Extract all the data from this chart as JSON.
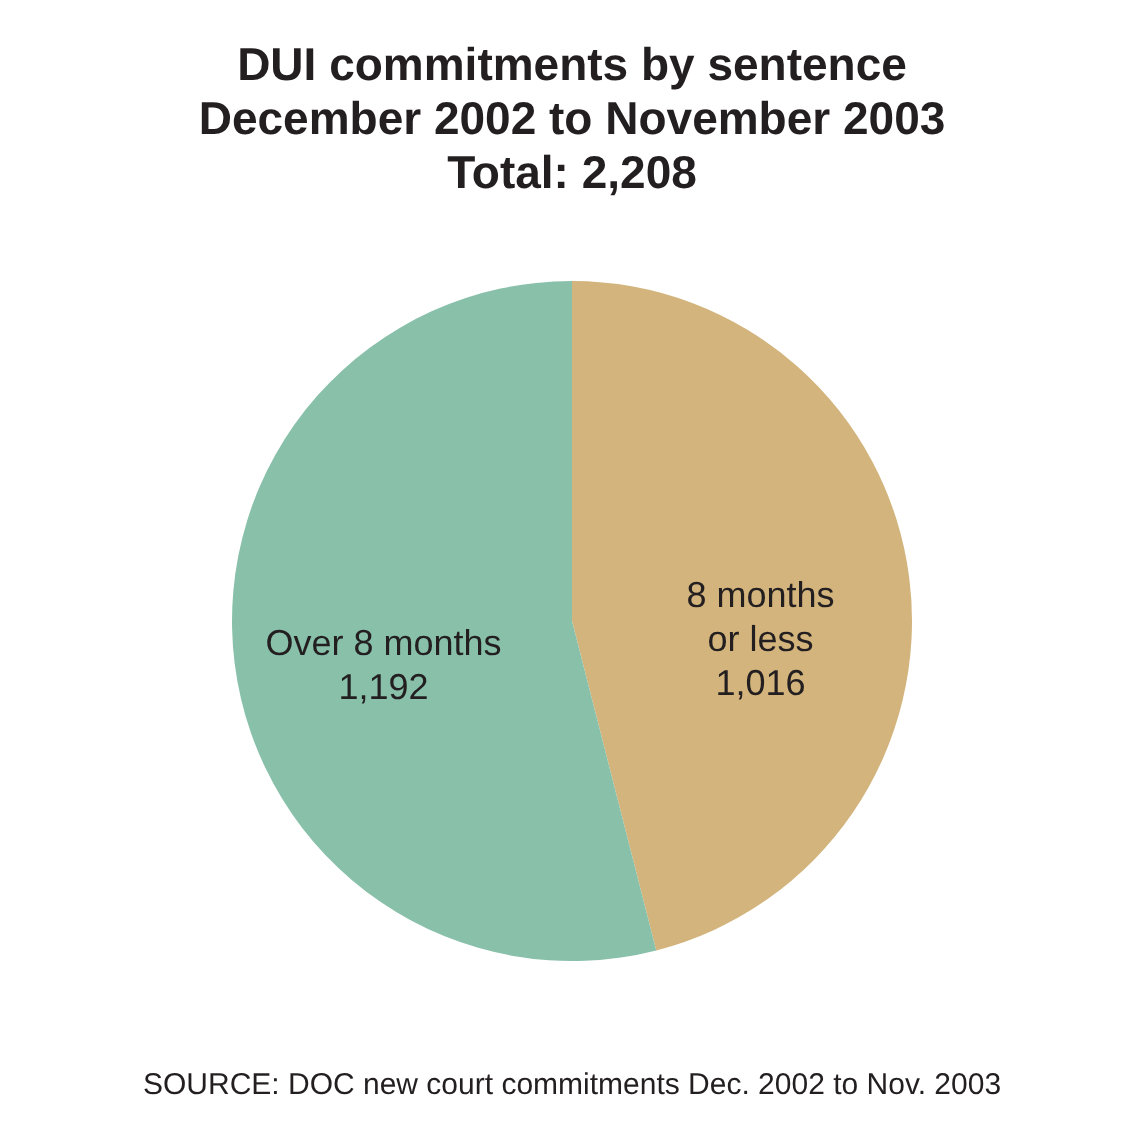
{
  "chart_data": {
    "type": "pie",
    "title": "DUI commitments by sentence\nDecember 2002 to November 2003\nTotal: 2,208",
    "categories": [
      "8 months\nor less",
      "Over 8 months"
    ],
    "values": [
      1016,
      1192
    ],
    "colors": [
      "#d2b47c",
      "#88c0aa"
    ],
    "value_labels": [
      "1,016",
      "1,192"
    ],
    "annotations": [
      "SOURCE: DOC new court commitments Dec. 2002 to Nov. 2003"
    ]
  }
}
